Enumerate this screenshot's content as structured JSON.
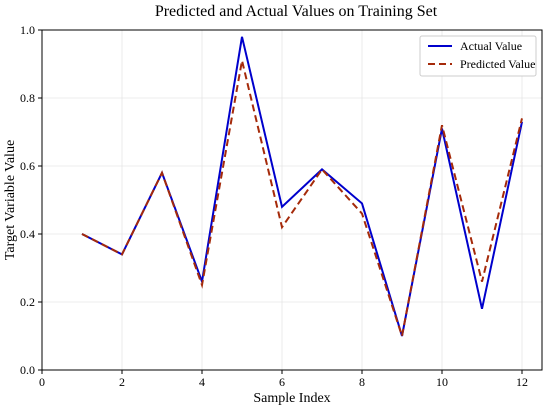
{
  "chart_data": {
    "type": "line",
    "title": "Predicted and Actual Values on Training Set",
    "xlabel": "Sample Index",
    "ylabel": "Target Variable Value",
    "xlim": [
      0,
      12.5
    ],
    "ylim": [
      0,
      1.0
    ],
    "x_ticks": [
      0,
      2,
      4,
      6,
      8,
      10,
      12
    ],
    "y_ticks": [
      0.0,
      0.2,
      0.4,
      0.6,
      0.8,
      1.0
    ],
    "x_tick_labels": [
      "0",
      "2",
      "4",
      "6",
      "8",
      "10",
      "12"
    ],
    "y_tick_labels": [
      "0.0",
      "0.2",
      "0.4",
      "0.6",
      "0.8",
      "1.0"
    ],
    "grid": true,
    "legend_position": "top-right",
    "x": [
      1,
      2,
      3,
      4,
      5,
      6,
      7,
      8,
      9,
      10,
      11,
      12
    ],
    "series": [
      {
        "name": "Actual Value",
        "color": "#0000cc",
        "line_style": "solid",
        "values": [
          0.4,
          0.34,
          0.58,
          0.26,
          0.98,
          0.48,
          0.59,
          0.49,
          0.1,
          0.71,
          0.18,
          0.73
        ]
      },
      {
        "name": "Predicted Value",
        "color": "#a52a0a",
        "line_style": "dashed",
        "values": [
          0.4,
          0.34,
          0.58,
          0.25,
          0.91,
          0.42,
          0.59,
          0.46,
          0.1,
          0.72,
          0.26,
          0.74
        ]
      }
    ]
  }
}
